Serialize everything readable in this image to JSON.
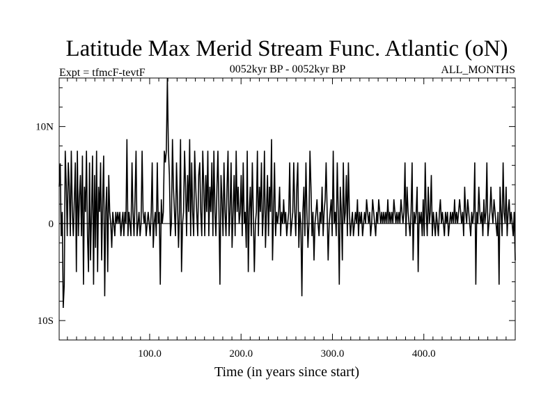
{
  "chart_data": {
    "type": "line",
    "title": "Latitude Max Merid Stream Func. Atlantic (oN)",
    "subtitle_left": "Expt = tfmcF-tevtF",
    "subtitle_center": "0052kyr BP - 0052kyr BP",
    "subtitle_right": "ALL_MONTHS",
    "xlabel": "Time (in years since start)",
    "ylabel": "",
    "xlim": [
      1,
      500
    ],
    "ylim": [
      -12,
      15
    ],
    "x_ticks": [
      100,
      200,
      300,
      400
    ],
    "x_tick_labels": [
      "100.0",
      "200.0",
      "300.0",
      "400.0"
    ],
    "y_ticks": [
      -10,
      0,
      10
    ],
    "y_tick_labels": [
      "10S",
      "0",
      "10N"
    ],
    "grid": false,
    "series": [
      {
        "values": [
          3.8,
          6.2,
          -1.3,
          1.2,
          -8.7,
          -6.3,
          7.5,
          3.9,
          -1.3,
          6.3,
          3.8,
          -1.3,
          7.5,
          1.2,
          -1.3,
          2.5,
          6.3,
          -5.0,
          7.5,
          -1.3,
          2.5,
          5.0,
          -1.3,
          7.0,
          -6.3,
          3.8,
          1.2,
          7.5,
          -1.3,
          -5.0,
          6.3,
          -3.8,
          1.2,
          7.0,
          -6.3,
          5.0,
          -2.5,
          7.5,
          -5.0,
          3.8,
          1.2,
          6.3,
          -3.8,
          2.5,
          7.0,
          -7.5,
          1.2,
          3.8,
          -5.0,
          5.0,
          1.2,
          0.0,
          -2.5,
          1.2,
          0.0,
          -1.3,
          1.2,
          0.0,
          1.2,
          0.0,
          1.2,
          -1.3,
          0.0,
          1.2,
          -1.3,
          1.2,
          0.0,
          8.7,
          -1.3,
          1.2,
          0.0,
          -1.3,
          6.3,
          1.2,
          -1.3,
          2.5,
          7.5,
          -1.3,
          0.0,
          1.2,
          -1.3,
          0.0,
          7.5,
          1.2,
          0.0,
          1.2,
          -1.3,
          0.0,
          1.2,
          0.0,
          -1.3,
          1.2,
          6.3,
          -2.5,
          0.0,
          1.2,
          -1.3,
          6.3,
          0.0,
          1.2,
          -6.3,
          2.5,
          0.0,
          1.2,
          7.5,
          6.3,
          7.5,
          15.0,
          7.5,
          5.0,
          -1.3,
          0.0,
          8.7,
          3.8,
          1.2,
          -1.3,
          6.3,
          2.5,
          -2.5,
          1.2,
          8.7,
          -5.0,
          0.0,
          1.2,
          7.5,
          3.8,
          -1.3,
          5.0,
          1.2,
          8.7,
          -1.3,
          6.3,
          1.2,
          -1.3,
          7.5,
          3.8,
          1.2,
          -1.3,
          5.0,
          6.3,
          1.2,
          -1.3,
          7.5,
          3.8,
          -1.3,
          5.0,
          1.2,
          7.5,
          -1.3,
          3.8,
          1.2,
          6.3,
          -1.3,
          7.5,
          1.2,
          -1.3,
          3.8,
          7.5,
          1.2,
          -6.3,
          5.0,
          2.5,
          -1.3,
          6.3,
          1.2,
          -1.3,
          3.8,
          7.5,
          -1.3,
          1.2,
          6.3,
          -2.5,
          1.2,
          5.0,
          -1.3,
          7.5,
          1.2,
          3.8,
          0.0,
          1.2,
          5.0,
          -1.3,
          6.3,
          0.0,
          1.2,
          -2.5,
          7.5,
          -5.0,
          1.2,
          3.8,
          -1.3,
          6.3,
          1.2,
          -5.0,
          0.0,
          1.2,
          7.5,
          -1.3,
          3.8,
          1.2,
          6.3,
          -1.3,
          1.2,
          7.5,
          -2.5,
          1.2,
          5.0,
          -1.3,
          3.8,
          1.2,
          8.7,
          -3.8,
          1.2,
          6.3,
          -1.3,
          1.2,
          0.0,
          1.2,
          3.8,
          -1.3,
          1.2,
          0.0,
          2.5,
          0.0,
          1.2,
          -1.3,
          0.0,
          1.2,
          6.3,
          -1.3,
          0.0,
          1.2,
          6.3,
          1.2,
          -1.3,
          3.8,
          6.3,
          -2.5,
          1.2,
          0.0,
          -7.5,
          1.2,
          3.8,
          -1.3,
          6.3,
          1.2,
          -2.5,
          0.0,
          7.5,
          3.8,
          -1.3,
          1.2,
          -3.8,
          0.0,
          1.2,
          2.5,
          0.0,
          -1.3,
          1.2,
          0.0,
          3.8,
          -1.3,
          1.2,
          2.5,
          6.3,
          1.2,
          -3.8,
          0.0,
          1.2,
          2.5,
          -1.3,
          7.5,
          0.0,
          1.2,
          -1.3,
          6.3,
          1.2,
          -6.3,
          3.8,
          1.2,
          -3.8,
          6.3,
          0.0,
          1.2,
          5.0,
          -1.3,
          6.3,
          1.2,
          -1.3,
          0.0,
          1.2,
          -1.3,
          0.0,
          1.2,
          0.0,
          2.5,
          -1.3,
          1.2,
          0.0,
          1.2,
          -1.3,
          0.0,
          1.2,
          0.0,
          2.5,
          1.2,
          0.0,
          1.2,
          -1.3,
          0.0,
          2.5,
          1.2,
          0.0,
          -1.3,
          1.2,
          0.0,
          2.5,
          1.2,
          0.0,
          1.2,
          0.0,
          1.2,
          0.0,
          1.2,
          0.0,
          2.5,
          0.0,
          1.2,
          0.0,
          1.2,
          0.0,
          2.5,
          1.2,
          0.0,
          1.2,
          0.0,
          1.2,
          0.0,
          2.5,
          1.2,
          0.0,
          1.2,
          6.3,
          -1.3,
          3.8,
          1.2,
          0.0,
          -1.3,
          1.2,
          6.3,
          -3.8,
          1.2,
          0.0,
          1.2,
          3.8,
          -5.0,
          1.2,
          0.0,
          1.2,
          -1.3,
          2.5,
          -1.3,
          6.3,
          1.2,
          -1.3,
          3.8,
          0.0,
          1.2,
          5.0,
          -1.3,
          1.2,
          0.0,
          -1.3,
          1.2,
          0.0,
          -1.3,
          1.2,
          2.5,
          0.0,
          1.2,
          0.0,
          -1.3,
          1.2,
          0.0,
          1.2,
          -1.3,
          0.0,
          1.2,
          0.0,
          1.2,
          0.0,
          2.5,
          0.0,
          1.2,
          0.0,
          1.2,
          2.5,
          1.2,
          0.0,
          1.2,
          -1.3,
          3.8,
          1.2,
          0.0,
          2.5,
          1.2,
          0.0,
          -1.3,
          1.2,
          0.0,
          1.2,
          6.3,
          -6.3,
          1.2,
          0.0,
          3.8,
          1.2,
          0.0,
          1.2,
          -1.3,
          2.5,
          0.0,
          1.2,
          6.3,
          -1.3,
          0.0,
          1.2,
          3.8,
          1.2,
          0.0,
          2.5,
          1.2,
          0.0,
          -1.3,
          1.2,
          -6.3,
          3.8,
          1.2,
          -1.3,
          6.3,
          1.2,
          0.0,
          3.8,
          -1.3,
          1.2,
          2.5,
          0.0,
          1.2,
          0.0,
          -1.3,
          1.2,
          -3.8
        ]
      }
    ]
  }
}
